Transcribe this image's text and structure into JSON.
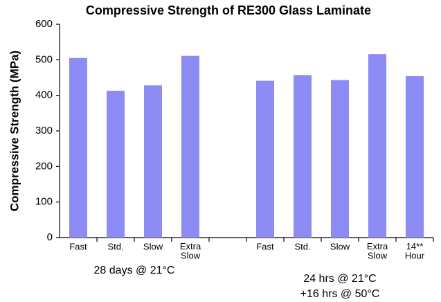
{
  "chart_data": {
    "type": "bar",
    "title": "Compressive Strength of RE300 Glass Laminate",
    "y_label": "Compressive Strength (MPa)",
    "categories": [
      "Fast",
      "Std.",
      "Slow",
      "Extra Slow",
      null,
      "Fast",
      "Std.",
      "Slow",
      "Extra Slow",
      "14** Hour"
    ],
    "values": [
      505,
      413,
      428,
      511,
      null,
      441,
      457,
      443,
      516,
      454
    ],
    "group_labels": [
      [
        "28 days @ 21°C"
      ],
      [
        "24 hrs @ 21°C",
        "+16 hrs @ 50°C"
      ]
    ],
    "color": "#8c8cf4",
    "ylim": [
      0,
      600
    ],
    "yticks": [
      0,
      100,
      200,
      300,
      400,
      500,
      600
    ],
    "grid": false
  }
}
